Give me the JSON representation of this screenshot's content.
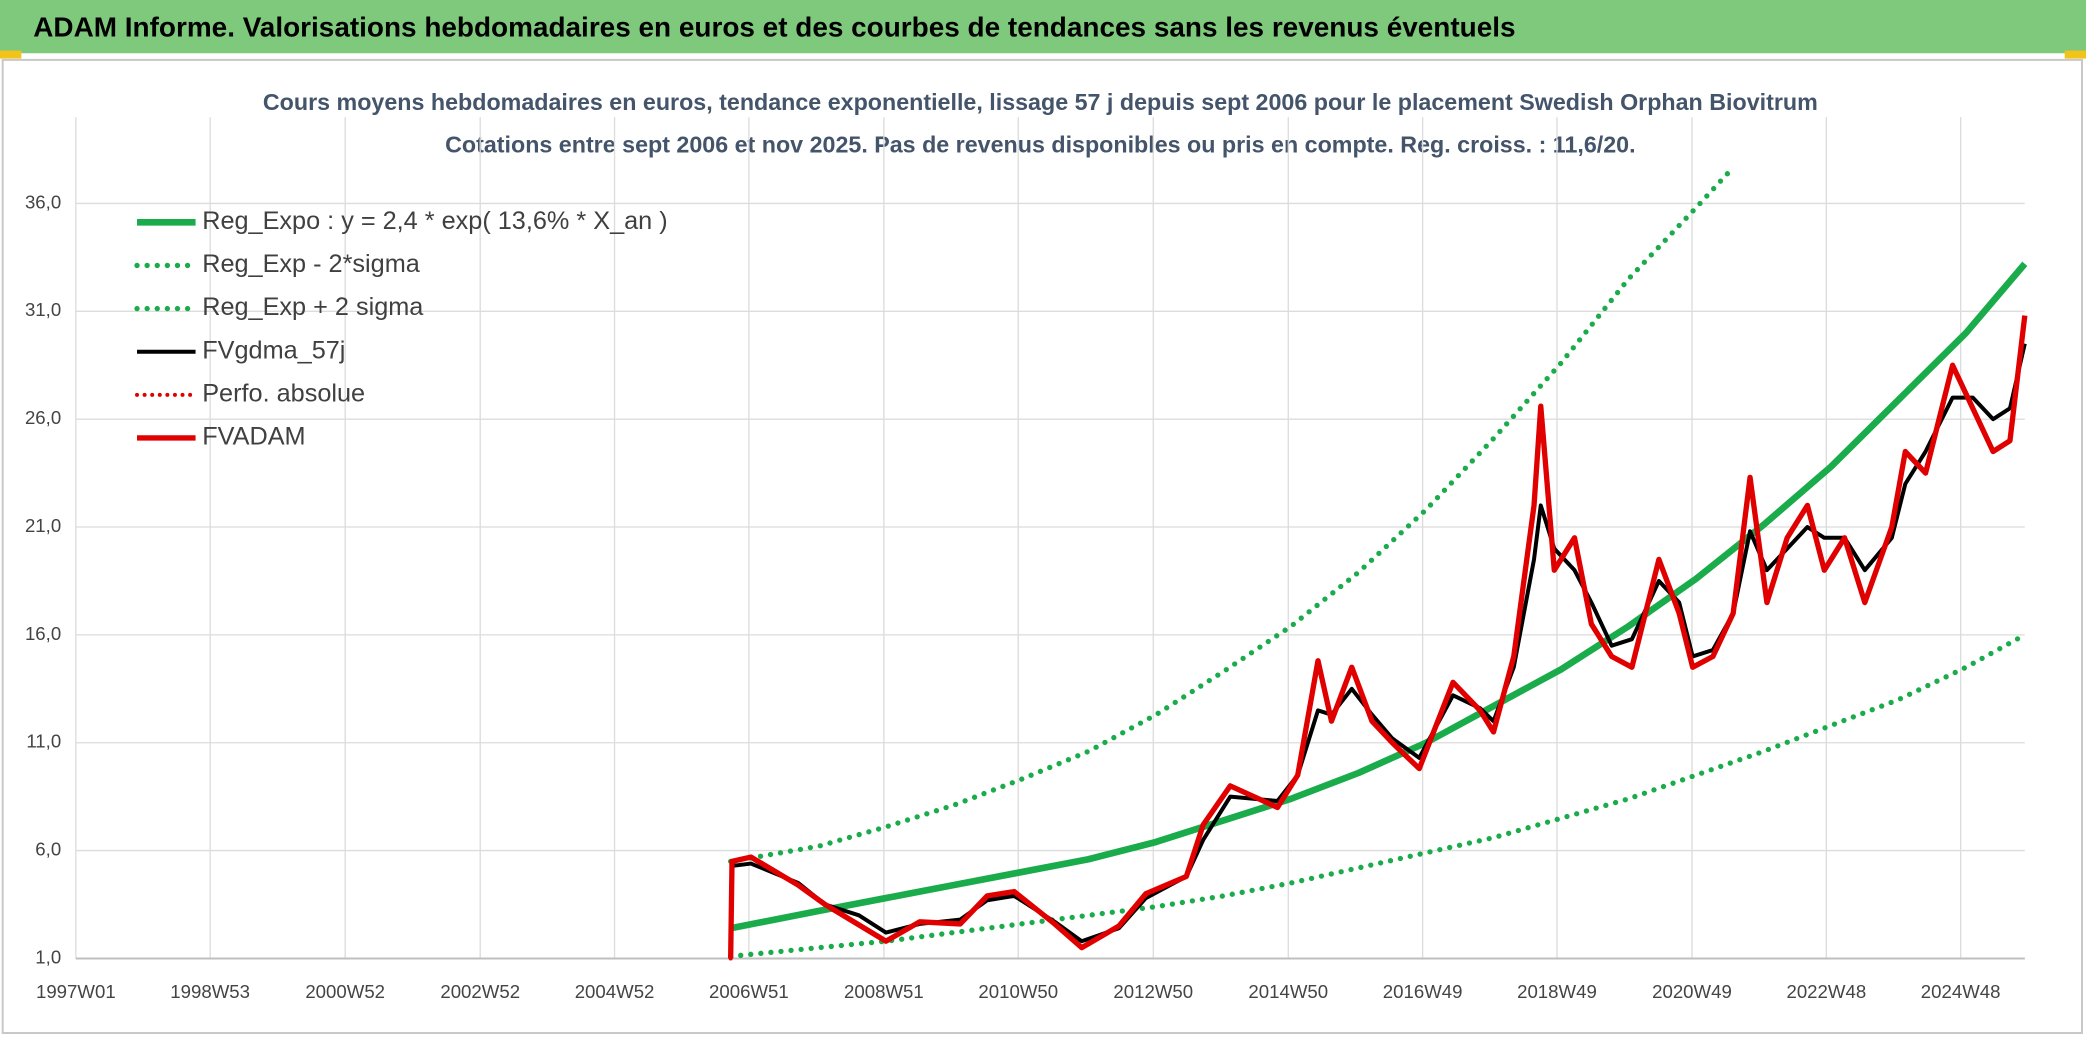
{
  "header": {
    "title": "ADAM Informe. Valorisations hebdomadaires en euros et des courbes de tendances sans les revenus éventuels"
  },
  "chart_data": {
    "type": "line",
    "title": "Cours moyens hebdomadaires en euros, tendance exponentielle, lissage 57 j depuis sept 2006 pour le placement Swedish Orphan Biovitrum",
    "subtitle": "Cotations entre sept 2006 et nov 2025. Pas de revenus disponibles ou pris en compte. Reg. croiss. : 11,6/20.",
    "xlim": [
      1997.0,
      2025.87
    ],
    "xticks": [
      {
        "value": 1997.0,
        "label": "1997W01"
      },
      {
        "value": 1998.99,
        "label": "1998W53"
      },
      {
        "value": 2000.99,
        "label": "2000W52"
      },
      {
        "value": 2002.99,
        "label": "2002W52"
      },
      {
        "value": 2004.98,
        "label": "2004W52"
      },
      {
        "value": 2006.97,
        "label": "2006W51"
      },
      {
        "value": 2008.97,
        "label": "2008W51"
      },
      {
        "value": 2010.96,
        "label": "2010W50"
      },
      {
        "value": 2012.96,
        "label": "2012W50"
      },
      {
        "value": 2014.96,
        "label": "2014W50"
      },
      {
        "value": 2016.95,
        "label": "2016W49"
      },
      {
        "value": 2018.94,
        "label": "2018W49"
      },
      {
        "value": 2020.94,
        "label": "2020W49"
      },
      {
        "value": 2022.93,
        "label": "2022W48"
      },
      {
        "value": 2024.92,
        "label": "2024W48"
      }
    ],
    "ylim": [
      1,
      40
    ],
    "yticks": [
      {
        "value": 1,
        "label": "1,0"
      },
      {
        "value": 6,
        "label": "6,0"
      },
      {
        "value": 11,
        "label": "11,0"
      },
      {
        "value": 16,
        "label": "16,0"
      },
      {
        "value": 21,
        "label": "21,0"
      },
      {
        "value": 26,
        "label": "26,0"
      },
      {
        "value": 31,
        "label": "31,0"
      },
      {
        "value": 36,
        "label": "36,0"
      }
    ],
    "grid": true,
    "legend": "upper left",
    "series": [
      {
        "name": "Reg_Expo : y = 2,4 * exp( 13,6% *  X_an )",
        "color": "#1aab4b",
        "style": "solid",
        "width": 5,
        "x": [
          2006.7,
          2008,
          2009,
          2010,
          2011,
          2012,
          2013,
          2014,
          2015,
          2016,
          2017,
          2018,
          2019,
          2020,
          2021,
          2022,
          2023,
          2024,
          2025,
          2025.87
        ],
        "values": [
          2.4,
          3.2,
          3.8,
          4.4,
          5.0,
          5.6,
          6.4,
          7.4,
          8.4,
          9.6,
          11.0,
          12.7,
          14.4,
          16.4,
          18.6,
          21.1,
          23.8,
          26.9,
          30.0,
          33.2
        ]
      },
      {
        "name": "Reg_Exp - 2*sigma",
        "color": "#1aab4b",
        "style": "dotted",
        "width": 4,
        "x": [
          2006.7,
          2008,
          2009,
          2010,
          2011,
          2012,
          2013,
          2014,
          2015,
          2016,
          2017,
          2018,
          2019,
          2020,
          2021,
          2022,
          2023,
          2024,
          2025,
          2025.87
        ],
        "values": [
          1.1,
          1.5,
          1.8,
          2.2,
          2.6,
          3.0,
          3.4,
          3.9,
          4.5,
          5.2,
          5.9,
          6.6,
          7.5,
          8.4,
          9.5,
          10.6,
          11.8,
          13.0,
          14.5,
          16.0
        ]
      },
      {
        "name": "Reg_Exp + 2 sigma",
        "color": "#1aab4b",
        "style": "dotted",
        "width": 4,
        "x": [
          2006.7,
          2008,
          2009,
          2010,
          2011,
          2012,
          2013,
          2014,
          2015,
          2016,
          2017,
          2018,
          2019,
          2020,
          2021,
          2021.5
        ],
        "values": [
          5.5,
          6.2,
          7.1,
          8.1,
          9.3,
          10.6,
          12.3,
          14.3,
          16.4,
          18.9,
          21.8,
          25.1,
          28.6,
          32.5,
          35.8,
          37.5
        ]
      },
      {
        "name": "FVgdma_57j",
        "color": "#000000",
        "style": "solid",
        "width": 3,
        "x": [
          2006.75,
          2007.0,
          2007.7,
          2008.1,
          2008.6,
          2009.0,
          2009.5,
          2010.1,
          2010.5,
          2010.9,
          2011.5,
          2011.9,
          2012.45,
          2012.85,
          2013.45,
          2013.7,
          2014.1,
          2014.8,
          2015.1,
          2015.4,
          2015.6,
          2015.9,
          2016.2,
          2016.5,
          2016.9,
          2017.4,
          2017.8,
          2018.0,
          2018.3,
          2018.6,
          2018.7,
          2018.9,
          2019.2,
          2019.45,
          2019.75,
          2020.05,
          2020.45,
          2020.75,
          2020.95,
          2021.25,
          2021.55,
          2021.8,
          2022.05,
          2022.35,
          2022.65,
          2022.9,
          2023.2,
          2023.5,
          2023.9,
          2024.1,
          2024.4,
          2024.8,
          2025.1,
          2025.4,
          2025.65,
          2025.87
        ],
        "values": [
          5.3,
          5.4,
          4.5,
          3.5,
          3.0,
          2.2,
          2.6,
          2.8,
          3.7,
          3.9,
          2.7,
          1.8,
          2.4,
          3.8,
          4.8,
          6.5,
          8.5,
          8.3,
          9.5,
          12.5,
          12.3,
          13.5,
          12.3,
          11.2,
          10.3,
          13.2,
          12.6,
          12.0,
          14.5,
          19.5,
          22.0,
          20.0,
          19.0,
          17.5,
          15.5,
          15.8,
          18.5,
          17.5,
          15.0,
          15.3,
          17.0,
          20.8,
          19.0,
          20.0,
          21.0,
          20.5,
          20.5,
          19.0,
          20.5,
          23.0,
          24.5,
          27.0,
          27.0,
          26.0,
          26.5,
          29.5
        ]
      },
      {
        "name": "Perfo. absolue",
        "color": "#e00000",
        "style": "dotted",
        "width": 3,
        "x": [
          2006.7,
          2006.72,
          2007.0,
          2007.7,
          2008.1,
          2009.0,
          2009.5,
          2010.1,
          2010.5,
          2010.9,
          2011.5,
          2011.9,
          2012.45,
          2012.85,
          2013.45,
          2013.7,
          2014.1,
          2014.8,
          2015.1,
          2015.4,
          2015.6,
          2015.9,
          2016.2,
          2016.5,
          2016.9,
          2017.4,
          2017.8,
          2018.0,
          2018.3,
          2018.6,
          2018.7,
          2018.9,
          2019.2,
          2019.45,
          2019.75,
          2020.05,
          2020.45,
          2020.75,
          2020.95,
          2021.25,
          2021.55,
          2021.8,
          2022.05,
          2022.35,
          2022.65,
          2022.9,
          2023.2,
          2023.5,
          2023.9,
          2024.1,
          2024.4,
          2024.8,
          2025.1,
          2025.4,
          2025.65,
          2025.87
        ],
        "values": [
          1.0,
          5.5,
          5.7,
          4.4,
          3.5,
          1.8,
          2.7,
          2.6,
          3.9,
          4.1,
          2.6,
          1.5,
          2.5,
          4.0,
          4.8,
          7.2,
          9.0,
          8.0,
          9.5,
          14.8,
          12.0,
          14.5,
          12.0,
          11.0,
          9.8,
          13.8,
          12.5,
          11.5,
          15.0,
          22.0,
          26.6,
          19.0,
          20.5,
          16.5,
          15.0,
          14.5,
          19.5,
          17.0,
          14.5,
          15.0,
          17.0,
          23.3,
          17.5,
          20.5,
          22.0,
          19.0,
          20.5,
          17.5,
          21.0,
          24.5,
          23.5,
          28.5,
          26.5,
          24.5,
          25.0,
          30.8
        ]
      },
      {
        "name": "FVADAM",
        "color": "#e00000",
        "style": "solid",
        "width": 4,
        "x": [
          2006.7,
          2006.72,
          2007.0,
          2007.7,
          2008.1,
          2009.0,
          2009.5,
          2010.1,
          2010.5,
          2010.9,
          2011.5,
          2011.9,
          2012.45,
          2012.85,
          2013.45,
          2013.7,
          2014.1,
          2014.8,
          2015.1,
          2015.4,
          2015.6,
          2015.9,
          2016.2,
          2016.5,
          2016.9,
          2017.4,
          2017.8,
          2018.0,
          2018.3,
          2018.6,
          2018.7,
          2018.9,
          2019.2,
          2019.45,
          2019.75,
          2020.05,
          2020.45,
          2020.75,
          2020.95,
          2021.25,
          2021.55,
          2021.8,
          2022.05,
          2022.35,
          2022.65,
          2022.9,
          2023.2,
          2023.5,
          2023.9,
          2024.1,
          2024.4,
          2024.8,
          2025.1,
          2025.4,
          2025.65,
          2025.87
        ],
        "values": [
          1.0,
          5.5,
          5.7,
          4.4,
          3.5,
          1.8,
          2.7,
          2.6,
          3.9,
          4.1,
          2.6,
          1.5,
          2.5,
          4.0,
          4.8,
          7.2,
          9.0,
          8.0,
          9.5,
          14.8,
          12.0,
          14.5,
          12.0,
          11.0,
          9.8,
          13.8,
          12.5,
          11.5,
          15.0,
          22.0,
          26.6,
          19.0,
          20.5,
          16.5,
          15.0,
          14.5,
          19.5,
          17.0,
          14.5,
          15.0,
          17.0,
          23.3,
          17.5,
          20.5,
          22.0,
          19.0,
          20.5,
          17.5,
          21.0,
          24.5,
          23.5,
          28.5,
          26.5,
          24.5,
          25.0,
          30.8
        ]
      }
    ]
  }
}
